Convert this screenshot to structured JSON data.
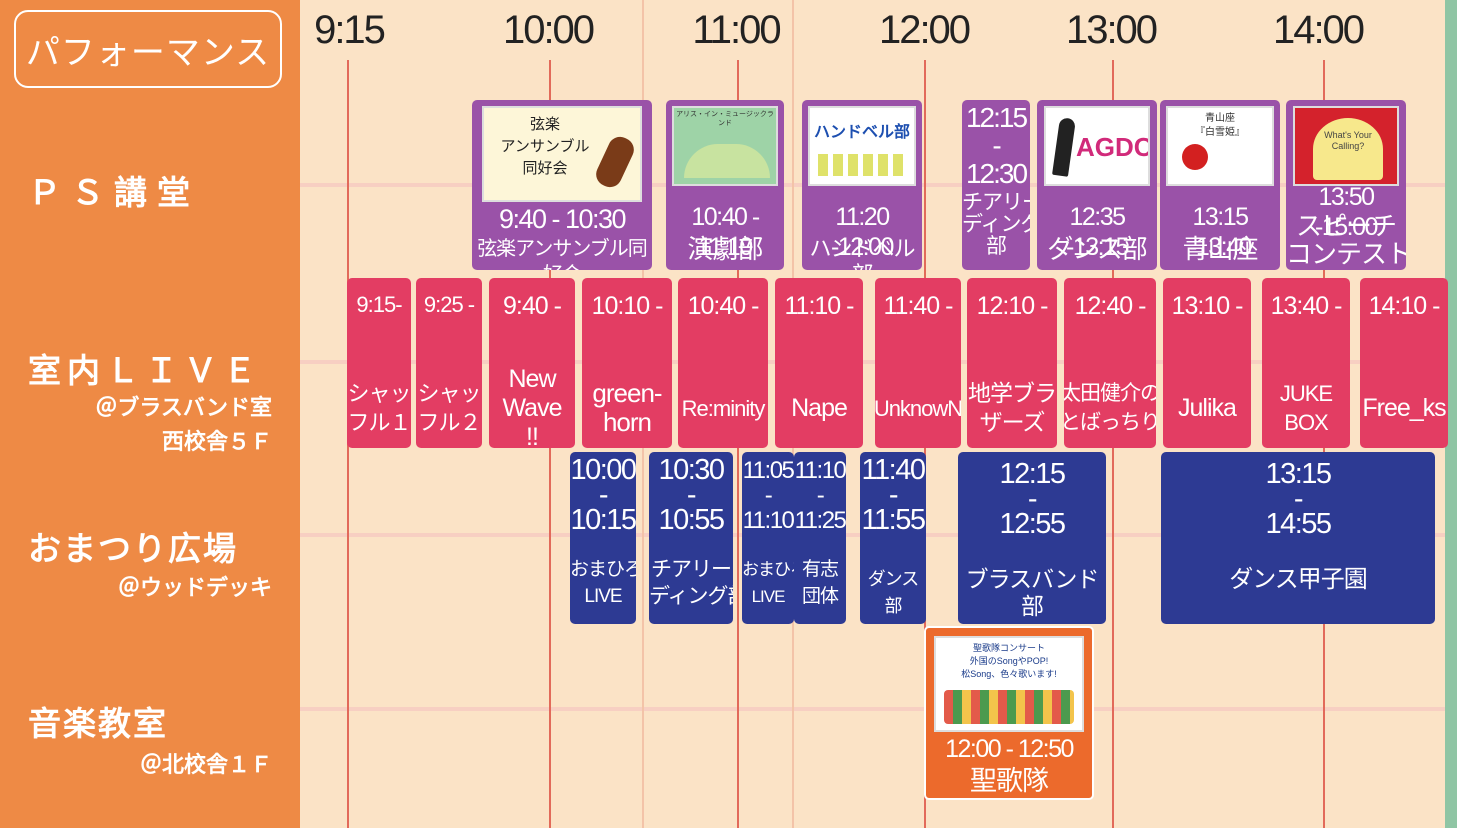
{
  "sidebar": {
    "title": "パフォーマンス",
    "venues": [
      {
        "name": "ＰＳ講堂",
        "location": ""
      },
      {
        "name": "室内ＬＩＶＥ",
        "location": "＠ブラスバンド室\n西校舎５Ｆ"
      },
      {
        "name": "おまつり広場",
        "location": "＠ウッドデッキ"
      },
      {
        "name": "音楽教室",
        "location": "＠北校舎１Ｆ"
      }
    ]
  },
  "timeline": {
    "labels": [
      "9:15",
      "10:00",
      "11:00",
      "12:00",
      "13:00",
      "14:00"
    ]
  },
  "ps_hall": [
    {
      "time": "9:40 - 10:30",
      "name": "弦楽アンサンブル同好会",
      "image_text": "弦楽\nアンサンブル\n同好会"
    },
    {
      "time": "10:40 - 11:10",
      "name": "演劇部",
      "image_text": "アリス・イン・ミュージックランド"
    },
    {
      "time": "11:20 -12:00",
      "name": "ハンドベル部",
      "image_text": "ハンドベル部"
    },
    {
      "time": "12:15\n-\n12:30",
      "name": "チアリー\nディング\n部"
    },
    {
      "time": "12:35 -13:15",
      "name": "ダンス部",
      "image_text": "AGDC"
    },
    {
      "time": "13:15 -13:40",
      "name": "青山座",
      "image_text": "青山座\n『白雪姫』"
    },
    {
      "time": "13:50 -15:00",
      "name": "スピーチ\nコンテスト",
      "image_text": "What's Your Calling?"
    }
  ],
  "indoor_live": [
    {
      "time": "9:15-",
      "name": "シャッ\nフル１"
    },
    {
      "time": "9:25 -",
      "name": "シャッ\nフル２"
    },
    {
      "time": "9:40 -",
      "name": "New\nWave\n!!"
    },
    {
      "time": "10:10 -",
      "name": "green-\nhorn"
    },
    {
      "time": "10:40 -",
      "name": "Re:minity"
    },
    {
      "time": "11:10 -",
      "name": "Nape"
    },
    {
      "time": "11:40 -",
      "name": "UnknowN"
    },
    {
      "time": "12:10 -",
      "name": "地学ブラ\nザーズ"
    },
    {
      "time": "12:40 -",
      "name": "太田健介の\nとばっちり"
    },
    {
      "time": "13:10 -",
      "name": "Julika"
    },
    {
      "time": "13:40 -",
      "name": "JUKE BOX"
    },
    {
      "time": "14:10 -",
      "name": "Free_ks"
    }
  ],
  "plaza": [
    {
      "start": "10:00",
      "end": "10:15",
      "name": "おまひろ\nLIVE"
    },
    {
      "start": "10:30",
      "end": "10:55",
      "name": "チアリー\nディング部"
    },
    {
      "start": "11:05",
      "end": "11:10",
      "name": "おまひろ\nLIVE"
    },
    {
      "start": "11:10",
      "end": "11:25",
      "name": "有志\n団体"
    },
    {
      "start": "11:40",
      "end": "11:55",
      "name": "ダンス部"
    },
    {
      "start": "12:15",
      "end": "12:55",
      "name": "ブラスバンド部"
    },
    {
      "start": "13:15",
      "end": "14:55",
      "name": "ダンス甲子園"
    }
  ],
  "music_room": {
    "time": "12:00 - 12:50",
    "name": "聖歌隊",
    "image_text": "聖歌隊コンサート\n外国のSongやPOP!\n松Song、色々歌います!"
  },
  "colors": {
    "sidebar": "#ee8a45",
    "background": "#fbe3c6",
    "ps_hall": "#9a52a8",
    "indoor_live": "#e33d63",
    "plaza": "#2d3a93",
    "music_room": "#ec6a2c"
  }
}
